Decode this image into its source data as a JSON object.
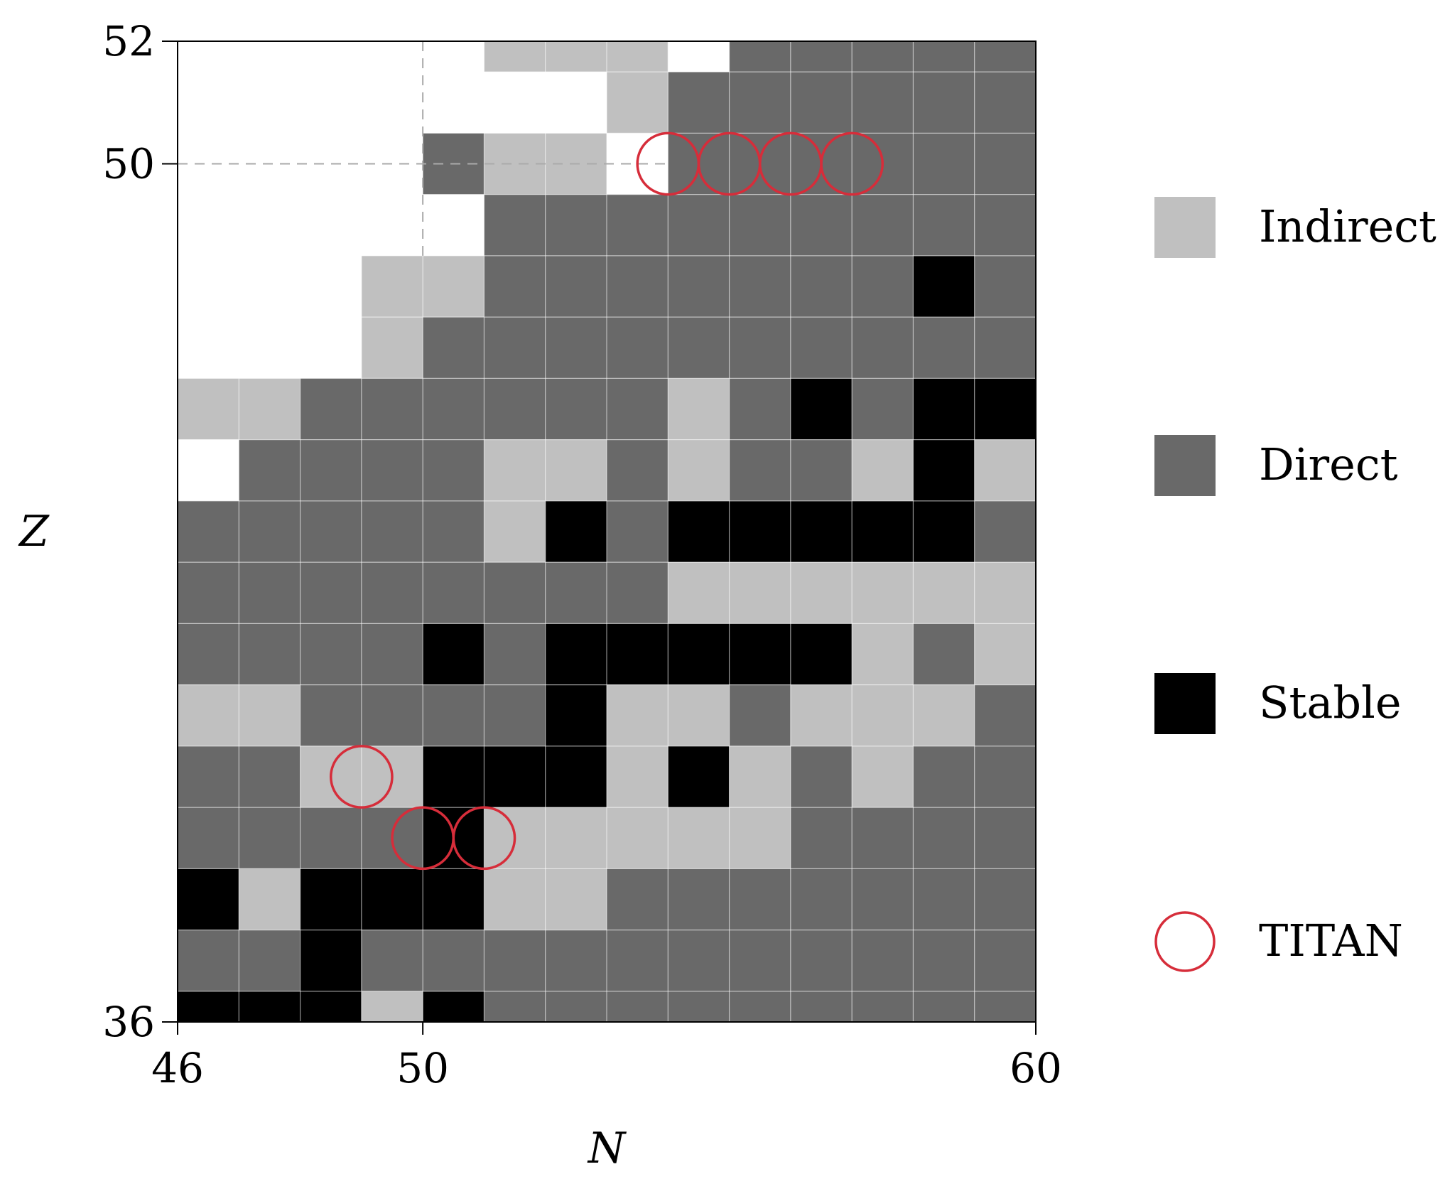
{
  "chart_data": {
    "type": "heatmap",
    "xlabel": "N",
    "ylabel": "Z",
    "xlim": [
      46,
      60
    ],
    "ylim": [
      36,
      52
    ],
    "x_ticks": [
      "46",
      "50",
      "60"
    ],
    "y_ticks": [
      "36",
      "50",
      "52"
    ],
    "reference_lines": {
      "x": 50,
      "y": 50,
      "style": "dashed"
    },
    "grid": true,
    "legend_position": "right",
    "legend": [
      {
        "key": "I",
        "label": "Indirect",
        "color": "#c0c0c0",
        "marker": "square"
      },
      {
        "key": "D",
        "label": "Direct",
        "color": "#696969",
        "marker": "square"
      },
      {
        "key": "S",
        "label": "Stable",
        "color": "#000000",
        "marker": "square"
      },
      {
        "key": "T",
        "label": "TITAN",
        "color": "#d62d3a",
        "marker": "circle"
      }
    ],
    "row_z_from_top": [
      52,
      51,
      50,
      49,
      48,
      47,
      46,
      45,
      44,
      43,
      42,
      41,
      40,
      39,
      38,
      37,
      36
    ],
    "rows_from_top": [
      [
        "_",
        "_",
        "_",
        "_",
        "_",
        "I",
        "I",
        "I",
        "_",
        "D",
        "D",
        "D",
        "D",
        "D",
        "D"
      ],
      [
        "_",
        "_",
        "_",
        "_",
        "_",
        "_",
        "_",
        "I",
        "D",
        "D",
        "D",
        "D",
        "D",
        "D",
        "D"
      ],
      [
        "_",
        "_",
        "_",
        "_",
        "D",
        "I",
        "I",
        "_",
        "D",
        "D",
        "D",
        "D",
        "D",
        "D",
        "D"
      ],
      [
        "_",
        "_",
        "_",
        "_",
        "_",
        "D",
        "D",
        "D",
        "D",
        "D",
        "D",
        "D",
        "D",
        "D",
        "D"
      ],
      [
        "_",
        "_",
        "_",
        "I",
        "I",
        "D",
        "D",
        "D",
        "D",
        "D",
        "D",
        "D",
        "S",
        "D",
        "S"
      ],
      [
        "_",
        "_",
        "_",
        "I",
        "D",
        "D",
        "D",
        "D",
        "D",
        "D",
        "D",
        "D",
        "D",
        "D",
        "S"
      ],
      [
        "I",
        "I",
        "D",
        "D",
        "D",
        "D",
        "D",
        "D",
        "I",
        "D",
        "S",
        "D",
        "S",
        "S",
        "S"
      ],
      [
        "_",
        "D",
        "D",
        "D",
        "D",
        "I",
        "I",
        "D",
        "I",
        "D",
        "D",
        "I",
        "S",
        "I",
        "D"
      ],
      [
        "D",
        "D",
        "D",
        "D",
        "D",
        "I",
        "S",
        "D",
        "S",
        "S",
        "S",
        "S",
        "S",
        "D",
        "S"
      ],
      [
        "D",
        "D",
        "D",
        "D",
        "D",
        "D",
        "D",
        "D",
        "I",
        "I",
        "I",
        "I",
        "I",
        "I",
        "I"
      ],
      [
        "D",
        "D",
        "D",
        "D",
        "S",
        "D",
        "S",
        "S",
        "S",
        "S",
        "S",
        "I",
        "D",
        "I",
        "D"
      ],
      [
        "I",
        "I",
        "D",
        "D",
        "D",
        "D",
        "S",
        "I",
        "I",
        "D",
        "I",
        "I",
        "I",
        "D",
        "D"
      ],
      [
        "D",
        "D",
        "I",
        "I",
        "S",
        "S",
        "S",
        "I",
        "S",
        "I",
        "D",
        "I",
        "D",
        "D",
        "D"
      ],
      [
        "D",
        "D",
        "D",
        "D",
        "S",
        "I",
        "I",
        "I",
        "I",
        "I",
        "D",
        "D",
        "D",
        "D",
        "D"
      ],
      [
        "S",
        "I",
        "S",
        "S",
        "S",
        "I",
        "I",
        "D",
        "D",
        "D",
        "D",
        "D",
        "D",
        "D",
        "D"
      ],
      [
        "D",
        "D",
        "S",
        "D",
        "D",
        "D",
        "D",
        "D",
        "D",
        "D",
        "D",
        "D",
        "D",
        "D",
        "D"
      ],
      [
        "S",
        "S",
        "S",
        "I",
        "S",
        "D",
        "D",
        "D",
        "D",
        "D",
        "D",
        "D",
        "D",
        "D",
        "D"
      ]
    ],
    "titan_points": [
      {
        "N": 54,
        "Z": 50
      },
      {
        "N": 55,
        "Z": 50
      },
      {
        "N": 56,
        "Z": 50
      },
      {
        "N": 57,
        "Z": 50
      },
      {
        "N": 49,
        "Z": 40
      },
      {
        "N": 50,
        "Z": 39
      },
      {
        "N": 51,
        "Z": 39
      }
    ]
  }
}
